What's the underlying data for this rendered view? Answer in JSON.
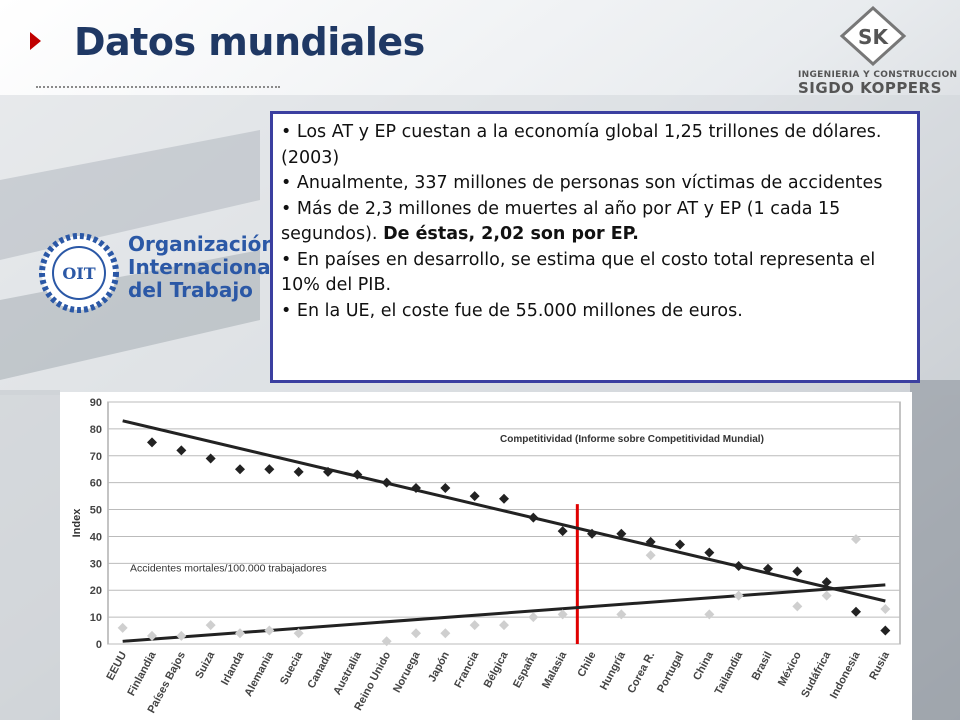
{
  "slide": {
    "title": "Datos mundiales",
    "logo": {
      "mark": "SK",
      "line1": "INGENIERIA Y CONSTRUCCION",
      "line2": "SIGDO KOPPERS"
    },
    "oit_logo": {
      "lines": [
        "Organización",
        "Internacional",
        "del Trabajo"
      ],
      "mark": "OIT"
    },
    "bullets": [
      {
        "text": "Los AT y EP cuestan a la economía global 1,25 trillones de dólares. (2003)",
        "bold": ""
      },
      {
        "text": "Anualmente,  337 millones de personas son víctimas de accidentes",
        "bold": ""
      },
      {
        "text": "Más de 2,3 millones de muertes al año por AT y EP (1 cada 15 segundos).",
        "bold": "De éstas, 2,02 son por EP."
      },
      {
        "text": "En países en desarrollo, se estima que el costo total representa el 10% del PIB.",
        "bold": ""
      },
      {
        "text": "En la UE, el coste fue de 55.000 millones de euros.",
        "bold": ""
      }
    ]
  },
  "chart_data": {
    "type": "scatter",
    "title": "",
    "xlabel": "",
    "ylabel": "Index",
    "ylim": [
      0,
      90
    ],
    "yticks": [
      0,
      10,
      20,
      30,
      40,
      50,
      60,
      70,
      80,
      90
    ],
    "grid": true,
    "categories": [
      "EEUU",
      "Finlandia",
      "Países Bajos",
      "Suiza",
      "Irlanda",
      "Alemania",
      "Suecia",
      "Canadá",
      "Australia",
      "Reino Unido",
      "Noruega",
      "Japón",
      "Francia",
      "Bélgica",
      "España",
      "Malasia",
      "Chile",
      "Hungría",
      "Corea R.",
      "Portugal",
      "China",
      "Tailandia",
      "Brasil",
      "México",
      "Sudáfrica",
      "Indonesia",
      "Rusia"
    ],
    "series": [
      {
        "name": "Competitividad (Informe sobre Competitividad Mundial)",
        "marker": "diamond",
        "color": "#222222",
        "values": [
          null,
          75,
          72,
          69,
          65,
          65,
          64,
          64,
          63,
          60,
          58,
          58,
          55,
          54,
          47,
          42,
          41,
          41,
          38,
          37,
          34,
          29,
          28,
          27,
          23,
          12,
          5
        ]
      },
      {
        "name": "Accidentes mortales/100.000 trabajadores",
        "marker": "diamond",
        "color": "#cfcfcf",
        "values": [
          6,
          3,
          3,
          7,
          4,
          5,
          4,
          null,
          null,
          1,
          4,
          4,
          7,
          7,
          10,
          11,
          null,
          11,
          33,
          null,
          11,
          18,
          null,
          14,
          18,
          39,
          13
        ]
      }
    ],
    "trend_lines": [
      {
        "series": "Competitividad (Informe sobre Competitividad Mundial)",
        "start": 83,
        "end": 16
      },
      {
        "series": "Accidentes mortales/100.000 trabajadores",
        "start": 1,
        "end": 22
      }
    ],
    "highlight_category": "Chile",
    "highlight_color": "#e00000"
  }
}
